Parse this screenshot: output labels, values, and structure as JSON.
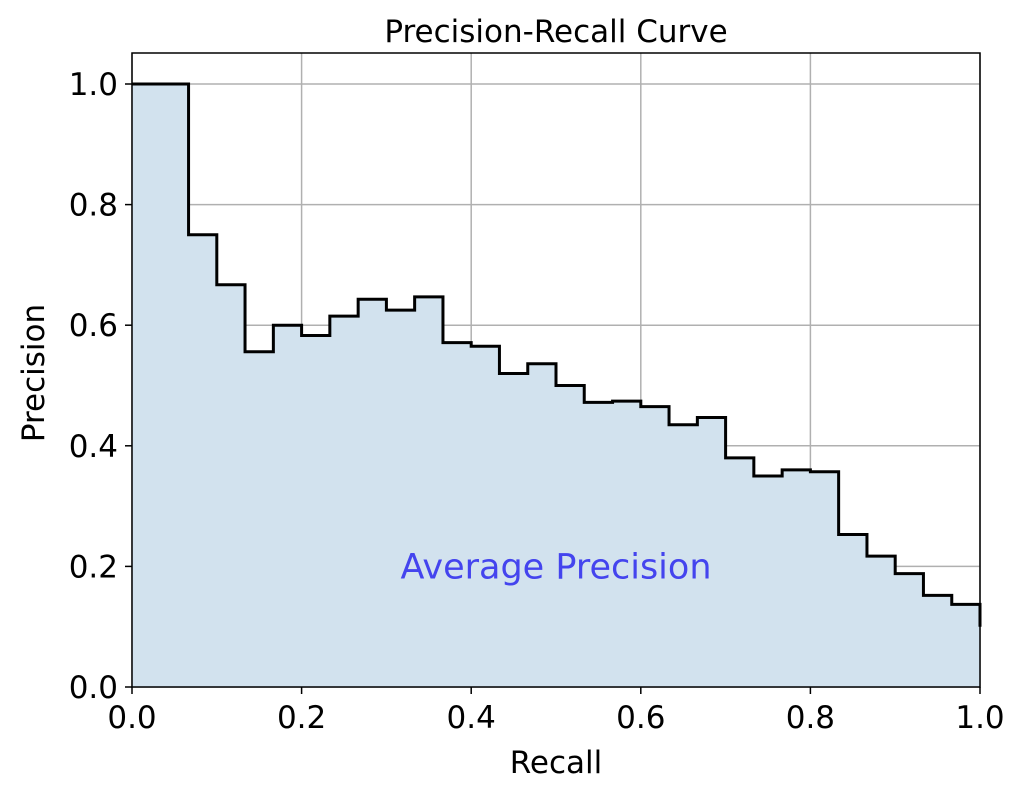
{
  "chart_data": {
    "type": "line",
    "title": "Precision-Recall Curve",
    "xlabel": "Recall",
    "ylabel": "Precision",
    "xlim": [
      0.0,
      1.0
    ],
    "ylim": [
      0.0,
      1.05
    ],
    "xticks": [
      0.0,
      0.2,
      0.4,
      0.6,
      0.8,
      1.0
    ],
    "xtick_labels": [
      "0.0",
      "0.2",
      "0.4",
      "0.6",
      "0.8",
      "1.0"
    ],
    "yticks": [
      0.0,
      0.2,
      0.4,
      0.6,
      0.8,
      1.0
    ],
    "ytick_labels": [
      "0.0",
      "0.2",
      "0.4",
      "0.6",
      "0.8",
      "1.0"
    ],
    "grid": true,
    "step": "post",
    "fill_color": "#d2e2ee",
    "line_color": "#000000",
    "annotation": {
      "text": "Average Precision",
      "x": 0.5,
      "y": 0.2,
      "color": "#4444ee"
    },
    "series": [
      {
        "recall": [
          0.0,
          0.0667,
          0.1,
          0.1333,
          0.1667,
          0.2,
          0.2333,
          0.2667,
          0.3,
          0.3333,
          0.3667,
          0.4,
          0.4333,
          0.4667,
          0.5,
          0.5333,
          0.5667,
          0.6,
          0.6333,
          0.6667,
          0.7,
          0.7333,
          0.7667,
          0.8,
          0.8333,
          0.8667,
          0.9,
          0.9333,
          0.9667,
          1.0
        ],
        "precision": [
          1.0,
          0.75,
          0.667,
          0.556,
          0.6,
          0.583,
          0.615,
          0.643,
          0.625,
          0.647,
          0.571,
          0.565,
          0.52,
          0.536,
          0.5,
          0.472,
          0.474,
          0.465,
          0.435,
          0.447,
          0.38,
          0.35,
          0.36,
          0.357,
          0.253,
          0.217,
          0.188,
          0.152,
          0.137,
          0.1
        ]
      }
    ]
  }
}
